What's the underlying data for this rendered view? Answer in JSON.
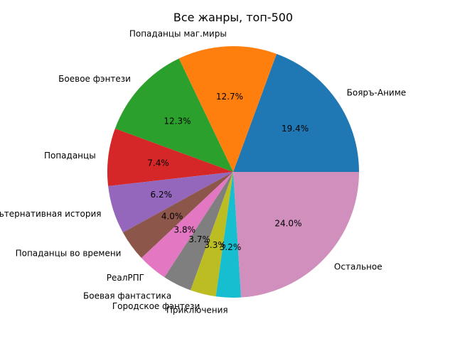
{
  "chart_data": {
    "type": "pie",
    "title": "Все жанры, топ-500",
    "start_angle_deg": 0,
    "direction": "counterclockwise",
    "slices": [
      {
        "label": "Бояръ-Аниме",
        "value": 19.4,
        "pct_label": "19.4%",
        "color": "#1f77b4"
      },
      {
        "label": "Попаданцы маг.миры",
        "value": 12.7,
        "pct_label": "12.7%",
        "color": "#ff7f0e"
      },
      {
        "label": "Боевое фэнтези",
        "value": 12.3,
        "pct_label": "12.3%",
        "color": "#2ca02c"
      },
      {
        "label": "Попаданцы",
        "value": 7.4,
        "pct_label": "7.4%",
        "color": "#d62728"
      },
      {
        "label": "Альтернативная история",
        "value": 6.2,
        "pct_label": "6.2%",
        "color": "#9467bd"
      },
      {
        "label": "Попаданцы во времени",
        "value": 4.0,
        "pct_label": "4.0%",
        "color": "#8c564b"
      },
      {
        "label": "РеалРПГ",
        "value": 3.8,
        "pct_label": "3.8%",
        "color": "#e377c2"
      },
      {
        "label": "Боевая фантастика",
        "value": 3.7,
        "pct_label": "3.7%",
        "color": "#7f7f7f"
      },
      {
        "label": "Городское фэнтези",
        "value": 3.3,
        "pct_label": "3.3%",
        "color": "#bcbd22"
      },
      {
        "label": "Приключения",
        "value": 3.2,
        "pct_label": "3.2%",
        "color": "#17becf"
      },
      {
        "label": "Остальное",
        "value": 24.0,
        "pct_label": "24.0%",
        "color": "#d08fbc"
      }
    ]
  }
}
